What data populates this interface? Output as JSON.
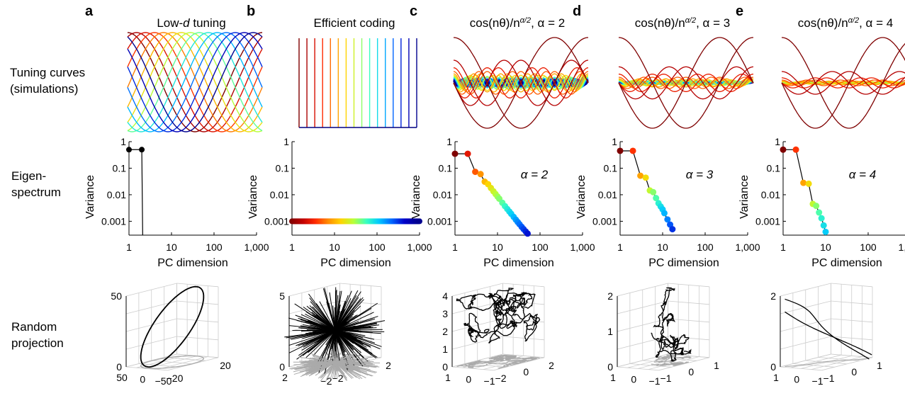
{
  "row_labels": {
    "tuning": [
      "Tuning curves",
      "(simulations)"
    ],
    "eigen": [
      "Eigen-",
      "spectrum"
    ],
    "proj": [
      "Random",
      "projection"
    ]
  },
  "eigen_axes": {
    "xlabel": "PC dimension",
    "ylabel": "Variance",
    "xticks": [
      "1",
      "10",
      "100",
      "1,000"
    ],
    "yticks": [
      "1",
      "0.1",
      "0.01",
      "0.001"
    ]
  },
  "colors": {
    "rainbow": [
      "#7f0000",
      "#c00000",
      "#ff2a00",
      "#ff8c00",
      "#ffd400",
      "#b6ff3a",
      "#3affc0",
      "#00c8ff",
      "#0064ff",
      "#0000c8",
      "#00008f"
    ],
    "axis": "#000000",
    "grid": "#cccccc",
    "shadow": "#aaaaaa"
  },
  "panels": [
    {
      "letter": "a",
      "title_parts": [
        "Low-",
        "d",
        " tuning"
      ],
      "tuning_kind": "lowd",
      "annotation": "",
      "proj": {
        "zticks": [
          "50",
          "0"
        ],
        "xticks": [
          "50",
          "0",
          "−50"
        ],
        "yticks": [
          "−20",
          "20"
        ]
      }
    },
    {
      "letter": "b",
      "title_parts": [
        "Efficient coding"
      ],
      "tuning_kind": "efficient",
      "annotation": "",
      "proj": {
        "zticks": [
          "5",
          "0"
        ],
        "xticks": [
          "2",
          "−2"
        ],
        "yticks": [
          "−2",
          "2"
        ]
      }
    },
    {
      "letter": "c",
      "title_parts": [
        "cos(nθ)/n",
        "α/2",
        ", α = 2"
      ],
      "tuning_kind": "power",
      "annotation": "α = 2",
      "proj": {
        "zticks": [
          "4",
          "3",
          "2",
          "1",
          "0"
        ],
        "xticks": [
          "1",
          "0",
          "−1"
        ],
        "yticks": [
          "−2",
          "0",
          "2"
        ]
      }
    },
    {
      "letter": "d",
      "title_parts": [
        "cos(nθ)/n",
        "α/2",
        ", α = 3"
      ],
      "tuning_kind": "power",
      "annotation": "α = 3",
      "proj": {
        "zticks": [
          "2",
          "1",
          "0"
        ],
        "xticks": [
          "1",
          "0",
          "−1"
        ],
        "yticks": [
          "−1",
          "0",
          "1"
        ]
      }
    },
    {
      "letter": "e",
      "title_parts": [
        "cos(nθ)/n",
        "α/2",
        ", α = 4"
      ],
      "tuning_kind": "power",
      "annotation": "α = 4",
      "proj": {
        "zticks": [
          "2",
          "0"
        ],
        "xticks": [
          "1",
          "0",
          "−1"
        ],
        "yticks": [
          "−1",
          "0",
          "1"
        ]
      }
    }
  ],
  "chart_data": [
    {
      "type": "line",
      "panel": "a",
      "row": "tuning",
      "title": "Low-d tuning",
      "description_series": "shifted cosine tuning curves",
      "num_curves": 15,
      "x_range": [
        0,
        6.283
      ]
    },
    {
      "type": "scatter",
      "panel": "a",
      "row": "eigenspectrum",
      "yscale": "log",
      "xscale": "log",
      "xlabel": "PC dimension",
      "ylabel": "Variance",
      "xlim": [
        1,
        1000
      ],
      "ylim": [
        0.0003,
        1
      ],
      "x": [
        1,
        2
      ],
      "values": [
        0.5,
        0.5
      ],
      "line_to_zero_at": 2.1
    },
    {
      "type": "scatter",
      "panel": "b",
      "row": "eigenspectrum",
      "yscale": "log",
      "xscale": "log",
      "xlabel": "PC dimension",
      "ylabel": "Variance",
      "xlim": [
        1,
        1000
      ],
      "ylim": [
        0.0003,
        1
      ],
      "x_range": [
        1,
        1000
      ],
      "constant_value": 0.001
    },
    {
      "type": "scatter",
      "panel": "c",
      "row": "eigenspectrum",
      "alpha": 2,
      "yscale": "log",
      "xscale": "log",
      "xlabel": "PC dimension",
      "ylabel": "Variance",
      "xlim": [
        1,
        1000
      ],
      "ylim": [
        0.0003,
        1
      ],
      "x": [
        1,
        2,
        3,
        4,
        5,
        6,
        8,
        10,
        15,
        20,
        30,
        40,
        55
      ],
      "values": [
        0.35,
        0.35,
        0.073,
        0.06,
        0.031,
        0.025,
        0.0135,
        0.0086,
        0.0037,
        0.0021,
        0.00093,
        0.00053,
        0.0003
      ]
    },
    {
      "type": "scatter",
      "panel": "d",
      "row": "eigenspectrum",
      "alpha": 3,
      "yscale": "log",
      "xscale": "log",
      "xlabel": "PC dimension",
      "ylabel": "Variance",
      "xlim": [
        1,
        1000
      ],
      "ylim": [
        0.0003,
        1
      ],
      "x": [
        1,
        2,
        3,
        4,
        5,
        6,
        8,
        10,
        12,
        15,
        18
      ],
      "values": [
        0.45,
        0.45,
        0.052,
        0.044,
        0.0145,
        0.0125,
        0.0048,
        0.0028,
        0.0015,
        0.00075,
        0.00042
      ]
    },
    {
      "type": "scatter",
      "panel": "e",
      "row": "eigenspectrum",
      "alpha": 4,
      "yscale": "log",
      "xscale": "log",
      "xlabel": "PC dimension",
      "ylabel": "Variance",
      "xlim": [
        1,
        1000
      ],
      "ylim": [
        0.0003,
        1
      ],
      "x": [
        1,
        2,
        3,
        4,
        5,
        6,
        8,
        10
      ],
      "values": [
        0.5,
        0.5,
        0.028,
        0.026,
        0.0045,
        0.0038,
        0.0013,
        0.0004
      ]
    }
  ]
}
